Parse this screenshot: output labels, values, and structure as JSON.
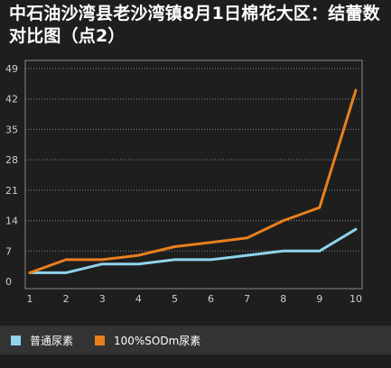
{
  "chart_data": {
    "type": "line",
    "title": "中石油沙湾县老沙湾镇8月1日棉花大区：结蕾数对比图（点2）",
    "xlabel": "",
    "ylabel": "",
    "x": [
      1,
      2,
      3,
      4,
      5,
      6,
      7,
      8,
      9,
      10
    ],
    "x_tick_labels": [
      "1",
      "2",
      "3",
      "4",
      "5",
      "6",
      "7",
      "8",
      "9",
      "10"
    ],
    "y_ticks": [
      0,
      7,
      14,
      21,
      28,
      35,
      42,
      49
    ],
    "y_tick_labels": [
      "0",
      "7",
      "14",
      "21",
      "28",
      "35",
      "42",
      "49"
    ],
    "ylim": [
      0,
      49
    ],
    "grid": "horizontal dashed",
    "legend_position": "bottom",
    "series": [
      {
        "name": "普通尿素",
        "color": "#8fd3ec",
        "values": [
          2,
          2,
          4,
          4,
          5,
          5,
          6,
          7,
          7,
          12
        ]
      },
      {
        "name": "100%SODm尿素",
        "color": "#e8801e",
        "values": [
          2,
          5,
          5,
          6,
          8,
          9,
          10,
          14,
          17,
          44
        ]
      }
    ]
  }
}
